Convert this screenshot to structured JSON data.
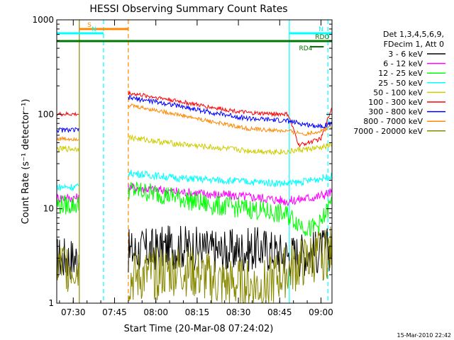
{
  "chart_data": {
    "type": "line",
    "title": "HESSI Observing Summary Count Rates",
    "xlabel": "Start Time (20-Mar-08 07:24:02)",
    "ylabel": "Count Rate (s⁻¹ detector⁻¹)",
    "yscale": "log",
    "ylim": [
      1,
      1000
    ],
    "xlim_minutes_after_07_24": [
      0,
      100
    ],
    "x_ticks": [
      "07:30",
      "07:45",
      "08:00",
      "08:15",
      "08:30",
      "08:45",
      "09:00"
    ],
    "y_ticks": [
      "1",
      "10",
      "100",
      "1000"
    ],
    "timestamp": "15-Mar-2010 22:42",
    "legend": {
      "placement": "right",
      "header": [
        "Det 1,3,4,5,6,9,",
        "FDecim 1, Att 0"
      ],
      "entries": [
        {
          "label": "3 - 6 keV",
          "color": "#000000"
        },
        {
          "label": "6 - 12 keV",
          "color": "#ff00ff"
        },
        {
          "label": "12 - 25 keV",
          "color": "#00ff00"
        },
        {
          "label": "25 - 50 keV",
          "color": "#00ffff"
        },
        {
          "label": "50 - 100 keV",
          "color": "#cccc00"
        },
        {
          "label": "100 - 300 keV",
          "color": "#ff0000"
        },
        {
          "label": "300 - 800 keV",
          "color": "#0000ff"
        },
        {
          "label": "800 - 7000 keV",
          "color": "#ff8800"
        },
        {
          "label": "7000 - 20000 keV",
          "color": "#888800"
        }
      ]
    },
    "flags": [
      {
        "label": "S",
        "color": "#ff8800",
        "start": 8,
        "end": 26
      },
      {
        "label": "N",
        "color": "#00ffff",
        "start": 0,
        "end": 17
      },
      {
        "label": "N",
        "color": "#00ffff",
        "start": 84.5,
        "end": 100
      },
      {
        "label": "",
        "color": "#007700",
        "start": 0,
        "end": 100
      },
      {
        "label": "RD4",
        "color": "#007700",
        "start": 92,
        "end": 97
      },
      {
        "label": "RDO",
        "color": "#007700",
        "start": 92,
        "end": 97
      }
    ],
    "vertical_lines": [
      {
        "t": 8.2,
        "color": "#888800",
        "style": "solid"
      },
      {
        "t": 17,
        "color": "#00ffff",
        "style": "dashed"
      },
      {
        "t": 26,
        "color": "#ff8800",
        "style": "dashed"
      },
      {
        "t": 84.5,
        "color": "#00ffff",
        "style": "solid"
      },
      {
        "t": 98.5,
        "color": "#00ffff",
        "style": "dashed"
      }
    ],
    "segments_minutes_after_07_24": [
      [
        0,
        8
      ],
      [
        26,
        100
      ]
    ],
    "series": [
      {
        "name": "3 - 6 keV",
        "color": "#000000",
        "points": [
          [
            0,
            3
          ],
          [
            8,
            3
          ],
          [
            26,
            3.5
          ],
          [
            45,
            4
          ],
          [
            60,
            3.5
          ],
          [
            75,
            3.8
          ],
          [
            84,
            3.2
          ],
          [
            95,
            3.5
          ],
          [
            100,
            3.8
          ]
        ]
      },
      {
        "name": "6 - 12 keV",
        "color": "#ff00ff",
        "points": [
          [
            0,
            13
          ],
          [
            8,
            13
          ],
          [
            26,
            17
          ],
          [
            45,
            15
          ],
          [
            60,
            14
          ],
          [
            75,
            13
          ],
          [
            84,
            12
          ],
          [
            95,
            13.5
          ],
          [
            100,
            15
          ]
        ]
      },
      {
        "name": "12 - 25 keV",
        "color": "#00ff00",
        "points": [
          [
            0,
            11
          ],
          [
            8,
            11
          ],
          [
            26,
            16
          ],
          [
            40,
            14
          ],
          [
            55,
            11
          ],
          [
            70,
            10
          ],
          [
            84,
            8.5
          ],
          [
            92,
            6
          ],
          [
            96,
            7
          ],
          [
            100,
            12
          ]
        ]
      },
      {
        "name": "25 - 50 keV",
        "color": "#00ffff",
        "points": [
          [
            0,
            17
          ],
          [
            8,
            17
          ],
          [
            26,
            24
          ],
          [
            45,
            21
          ],
          [
            60,
            20
          ],
          [
            75,
            19
          ],
          [
            84,
            18.5
          ],
          [
            88,
            19
          ],
          [
            100,
            22
          ]
        ]
      },
      {
        "name": "50 - 100 keV",
        "color": "#cccc00",
        "points": [
          [
            0,
            43
          ],
          [
            8,
            43
          ],
          [
            26,
            57
          ],
          [
            40,
            50
          ],
          [
            55,
            45
          ],
          [
            70,
            41
          ],
          [
            84,
            40
          ],
          [
            88,
            42
          ],
          [
            96,
            44
          ],
          [
            100,
            48
          ]
        ]
      },
      {
        "name": "100 - 300 keV",
        "color": "#ff0000",
        "points": [
          [
            0,
            100
          ],
          [
            8,
            100
          ],
          [
            26,
            168
          ],
          [
            40,
            145
          ],
          [
            55,
            120
          ],
          [
            70,
            103
          ],
          [
            84,
            100
          ],
          [
            88,
            47
          ],
          [
            96,
            55
          ],
          [
            100,
            120
          ]
        ]
      },
      {
        "name": "300 - 800 keV",
        "color": "#0000ff",
        "points": [
          [
            0,
            68
          ],
          [
            8,
            68
          ],
          [
            26,
            150
          ],
          [
            40,
            130
          ],
          [
            55,
            106
          ],
          [
            70,
            90
          ],
          [
            84,
            85
          ],
          [
            90,
            78
          ],
          [
            96,
            75
          ],
          [
            100,
            80
          ]
        ]
      },
      {
        "name": "800 - 7000 keV",
        "color": "#ff8800",
        "points": [
          [
            0,
            55
          ],
          [
            8,
            55
          ],
          [
            26,
            125
          ],
          [
            40,
            105
          ],
          [
            55,
            85
          ],
          [
            70,
            70
          ],
          [
            84,
            66
          ],
          [
            90,
            62
          ],
          [
            96,
            66
          ],
          [
            100,
            75
          ]
        ]
      },
      {
        "name": "7000 - 20000 keV",
        "color": "#888800",
        "points": [
          [
            0,
            2.5
          ],
          [
            8,
            2.5
          ],
          [
            26,
            1.8
          ],
          [
            45,
            2.3
          ],
          [
            60,
            1.6
          ],
          [
            75,
            1.5
          ],
          [
            84,
            2.2
          ],
          [
            95,
            3.2
          ],
          [
            100,
            3.5
          ]
        ]
      }
    ]
  }
}
